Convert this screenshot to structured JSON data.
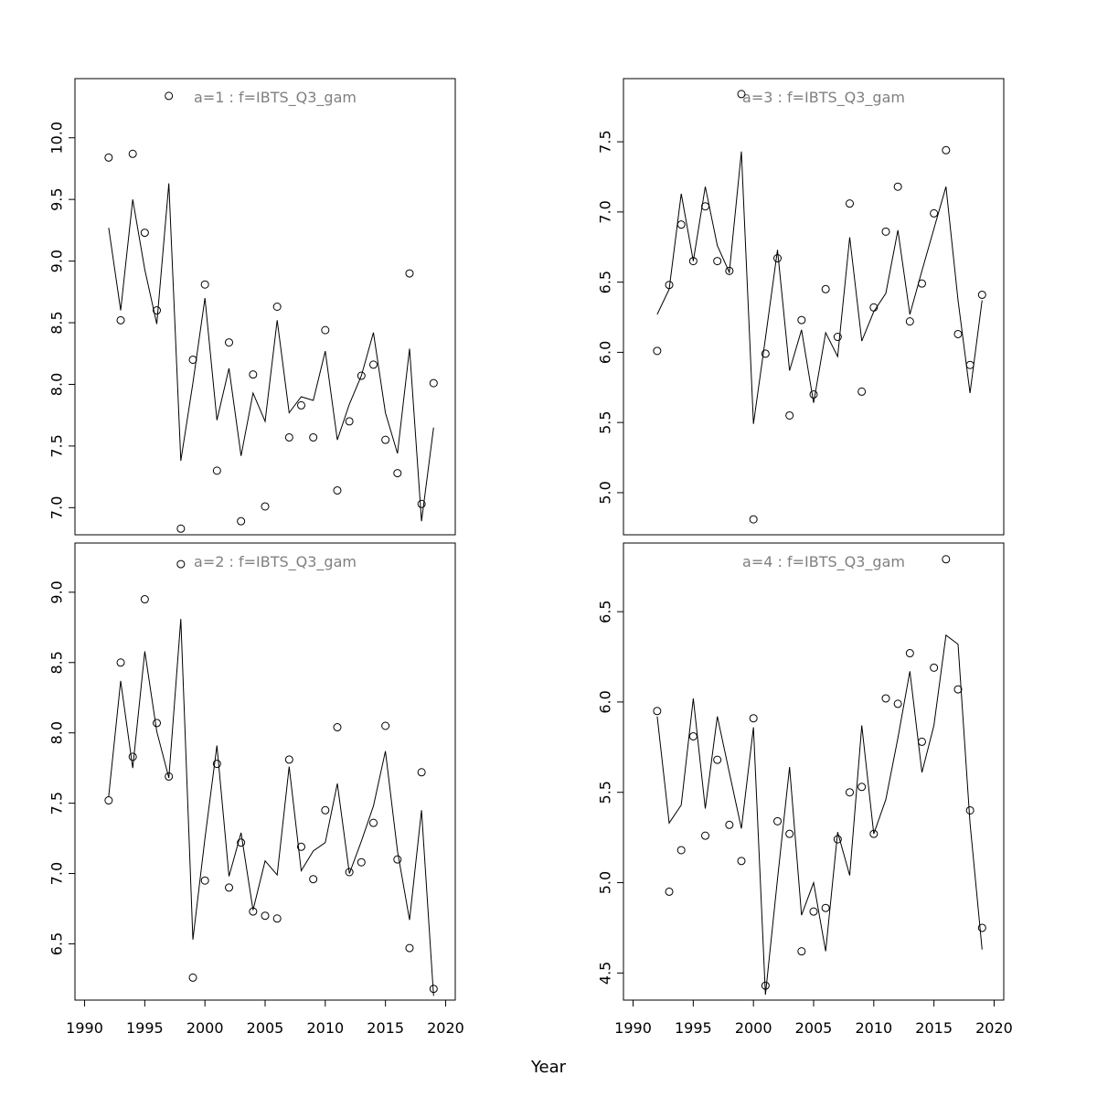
{
  "xlabel": "Year",
  "colors": {
    "title": "#808080",
    "line": "#000000",
    "point": "#000000",
    "box": "#000000"
  },
  "chart_data": [
    {
      "type": "scatter",
      "title": "a=1  :  f=IBTS_Q3_gam",
      "x": [
        1992,
        1993,
        1994,
        1995,
        1996,
        1997,
        1998,
        1999,
        2000,
        2001,
        2002,
        2003,
        2004,
        2005,
        2006,
        2007,
        2008,
        2009,
        2010,
        2011,
        2012,
        2013,
        2014,
        2015,
        2016,
        2017,
        2018,
        2019
      ],
      "ylim": [
        6.78,
        10.48
      ],
      "yticks": [
        "7.0",
        "7.5",
        "8.0",
        "8.5",
        "9.0",
        "9.5",
        "10.0"
      ],
      "series": [
        {
          "kind": "points",
          "values": [
            9.84,
            8.52,
            9.87,
            9.23,
            8.6,
            10.34,
            6.83,
            8.2,
            8.81,
            7.3,
            8.34,
            6.89,
            8.08,
            7.01,
            8.63,
            7.57,
            7.83,
            7.57,
            8.44,
            7.14,
            7.7,
            8.07,
            8.16,
            7.55,
            7.28,
            8.9,
            7.03,
            8.01
          ]
        },
        {
          "kind": "line",
          "values": [
            9.27,
            8.6,
            9.5,
            8.93,
            8.49,
            9.63,
            7.38,
            8.01,
            8.7,
            7.71,
            8.13,
            7.42,
            7.93,
            7.7,
            8.52,
            7.77,
            7.9,
            7.87,
            8.27,
            7.55,
            7.84,
            8.07,
            8.42,
            7.77,
            7.44,
            8.29,
            6.89,
            7.65
          ]
        }
      ]
    },
    {
      "type": "scatter",
      "title": "a=3  :  f=IBTS_Q3_gam",
      "x": [
        1992,
        1993,
        1994,
        1995,
        1996,
        1997,
        1998,
        1999,
        2000,
        2001,
        2002,
        2003,
        2004,
        2005,
        2006,
        2007,
        2008,
        2009,
        2010,
        2011,
        2012,
        2013,
        2014,
        2015,
        2016,
        2017,
        2018,
        2019
      ],
      "ylim": [
        4.7,
        7.95
      ],
      "yticks": [
        "5.0",
        "5.5",
        "6.0",
        "6.5",
        "7.0",
        "7.5"
      ],
      "series": [
        {
          "kind": "points",
          "values": [
            6.01,
            6.48,
            6.91,
            6.65,
            7.04,
            6.65,
            6.58,
            7.84,
            4.81,
            5.99,
            6.67,
            5.55,
            6.23,
            5.7,
            6.45,
            6.11,
            7.06,
            5.72,
            6.32,
            6.86,
            7.18,
            6.22,
            6.49,
            6.99,
            7.44,
            6.13,
            5.91,
            6.41
          ]
        },
        {
          "kind": "line",
          "values": [
            6.27,
            6.45,
            7.13,
            6.65,
            7.18,
            6.76,
            6.57,
            7.43,
            5.49,
            6.1,
            6.73,
            5.87,
            6.16,
            5.64,
            6.14,
            5.97,
            6.82,
            6.08,
            6.29,
            6.42,
            6.87,
            6.27,
            6.58,
            6.88,
            7.18,
            6.37,
            5.71,
            6.37
          ]
        }
      ]
    },
    {
      "type": "scatter",
      "title": "a=2  :  f=IBTS_Q3_gam",
      "x": [
        1992,
        1993,
        1994,
        1995,
        1996,
        1997,
        1998,
        1999,
        2000,
        2001,
        2002,
        2003,
        2004,
        2005,
        2006,
        2007,
        2008,
        2009,
        2010,
        2011,
        2012,
        2013,
        2014,
        2015,
        2016,
        2017,
        2018,
        2019
      ],
      "ylim": [
        6.1,
        9.35
      ],
      "yticks": [
        "6.5",
        "7.0",
        "7.5",
        "8.0",
        "8.5",
        "9.0"
      ],
      "series": [
        {
          "kind": "points",
          "values": [
            7.52,
            8.5,
            7.83,
            8.95,
            8.07,
            7.69,
            9.2,
            6.26,
            6.95,
            7.78,
            6.9,
            7.22,
            6.73,
            6.7,
            6.68,
            7.81,
            7.19,
            6.96,
            7.45,
            8.04,
            7.01,
            7.08,
            7.36,
            8.05,
            7.1,
            6.47,
            7.72,
            6.18
          ]
        },
        {
          "kind": "line",
          "values": [
            7.55,
            8.37,
            7.75,
            8.58,
            8.01,
            7.68,
            8.81,
            6.53,
            7.25,
            7.91,
            6.98,
            7.29,
            6.74,
            7.09,
            6.99,
            7.76,
            7.02,
            7.16,
            7.22,
            7.64,
            7.0,
            7.23,
            7.48,
            7.87,
            7.16,
            6.67,
            7.45,
            6.13
          ]
        }
      ]
    },
    {
      "type": "scatter",
      "title": "a=4  :  f=IBTS_Q3_gam",
      "x": [
        1992,
        1993,
        1994,
        1995,
        1996,
        1997,
        1998,
        1999,
        2000,
        2001,
        2002,
        2003,
        2004,
        2005,
        2006,
        2007,
        2008,
        2009,
        2010,
        2011,
        2012,
        2013,
        2014,
        2015,
        2016,
        2017,
        2018,
        2019
      ],
      "ylim": [
        4.35,
        6.88
      ],
      "yticks": [
        "4.5",
        "5.0",
        "5.5",
        "6.0",
        "6.5"
      ],
      "series": [
        {
          "kind": "points",
          "values": [
            5.95,
            4.95,
            5.18,
            5.81,
            5.26,
            5.68,
            5.32,
            5.12,
            5.91,
            4.43,
            5.34,
            5.27,
            4.62,
            4.84,
            4.86,
            5.24,
            5.5,
            5.53,
            5.27,
            6.02,
            5.99,
            6.27,
            5.78,
            6.19,
            6.79,
            6.07,
            5.4,
            4.75
          ]
        },
        {
          "kind": "line",
          "values": [
            5.92,
            5.33,
            5.43,
            6.02,
            5.41,
            5.92,
            5.61,
            5.3,
            5.86,
            4.38,
            5.02,
            5.64,
            4.82,
            5.0,
            4.62,
            5.28,
            5.04,
            5.87,
            5.27,
            5.46,
            5.8,
            6.17,
            5.61,
            5.87,
            6.37,
            6.32,
            5.33,
            4.63
          ]
        }
      ]
    }
  ]
}
